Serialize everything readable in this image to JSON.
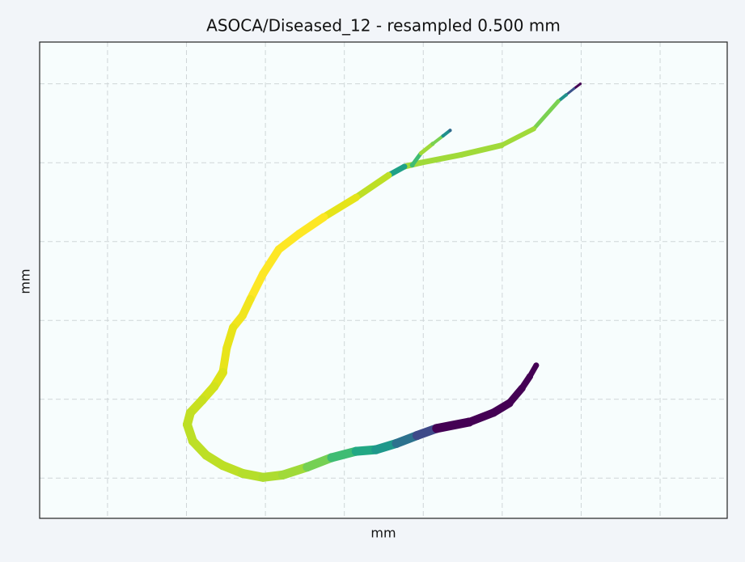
{
  "chart_data": {
    "type": "scatter",
    "title": "ASOCA/Diseased_12 - resampled 0.500 mm",
    "x_label": "mm",
    "y_label": "mm",
    "xlim": [
      -8.6,
      78.5
    ],
    "ylim": [
      -5.1,
      55.3
    ],
    "xticks": [
      0,
      10,
      20,
      30,
      40,
      50,
      60,
      70
    ],
    "yticks": [
      0,
      10,
      20,
      30,
      40,
      50
    ],
    "grid": true,
    "series": [
      {
        "x": [
          59.9,
          59.1,
          58.1,
          57.1,
          54.0,
          49.9,
          44.8,
          39.7,
          37.6,
          35.6,
          31.5,
          27.4,
          24.3,
          21.7,
          19.7,
          18.1,
          17.1,
          15.9,
          15.1,
          14.6,
          13.5,
          12.0,
          10.5,
          10.1,
          10.8,
          12.5,
          14.6,
          17.1,
          19.7,
          22.2,
          25.3,
          28.4,
          31.5,
          34.0,
          36.6,
          39.2,
          41.7,
          45.8,
          48.9,
          50.9,
          52.5,
          53.5,
          54.3
        ],
        "values": [
          50.0,
          49.4,
          48.6,
          47.8,
          44.3,
          42.2,
          41.0,
          40.0,
          39.5,
          38.4,
          35.6,
          33.1,
          31.0,
          29.0,
          25.9,
          22.7,
          20.6,
          19.1,
          16.5,
          13.4,
          11.6,
          9.9,
          8.3,
          6.8,
          4.7,
          2.9,
          1.6,
          0.6,
          0.1,
          0.4,
          1.4,
          2.6,
          3.4,
          3.6,
          4.4,
          5.4,
          6.3,
          7.1,
          8.3,
          9.5,
          11.4,
          12.9,
          14.3
        ],
        "sizes": [
          3,
          3,
          4,
          5,
          6,
          7,
          7,
          7,
          7,
          8,
          9,
          10,
          10,
          10,
          10,
          10,
          10,
          10,
          10,
          11,
          11,
          11,
          11,
          11,
          11,
          11,
          11,
          11,
          11,
          11,
          11,
          11,
          11,
          11,
          11,
          11,
          11,
          11,
          10,
          10,
          9,
          8,
          7
        ],
        "colors": [
          "#440154",
          "#3b528b",
          "#21918c",
          "#7ad151",
          "#a0da39",
          "#a0da39",
          "#a0da39",
          "#a0da39",
          "#1fa187",
          "#bddf26",
          "#e5e419",
          "#fde725",
          "#fde725",
          "#fde725",
          "#fde725",
          "#f1e51d",
          "#f1e51d",
          "#e8e419",
          "#e8e419",
          "#dde318",
          "#d2e21b",
          "#c8e020",
          "#c2df23",
          "#bddf26",
          "#bddf26",
          "#bddf26",
          "#bddf26",
          "#b5de2b",
          "#addc30",
          "#a0da39",
          "#75d054",
          "#3fbc73",
          "#22a884",
          "#1f988b",
          "#2c728e",
          "#3e4a89",
          "#440154",
          "#440154",
          "#440154",
          "#440154",
          "#440154",
          "#440154",
          "#440154"
        ]
      },
      {
        "x": [
          38.6,
          39.7,
          41.2,
          42.5,
          43.4
        ],
        "values": [
          39.7,
          41.2,
          42.4,
          43.4,
          44.1
        ],
        "sizes": [
          6,
          5,
          5,
          4,
          4
        ],
        "colors": [
          "#3fbc73",
          "#a0da39",
          "#7ad151",
          "#21918c",
          "#31688e"
        ]
      }
    ]
  }
}
